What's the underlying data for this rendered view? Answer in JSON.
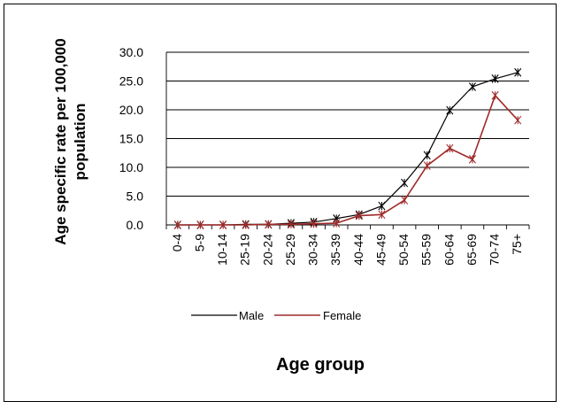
{
  "chart_data": {
    "type": "line",
    "categories": [
      "0-4",
      "5-9",
      "10-14",
      "25-19",
      "20-24",
      "25-29",
      "30-34",
      "35-39",
      "40-44",
      "45-49",
      "50-54",
      "55-59",
      "60-64",
      "65-69",
      "70-74",
      "75+"
    ],
    "series": [
      {
        "name": "Male",
        "color": "#000000",
        "values": [
          0.0,
          0.0,
          0.0,
          0.1,
          0.1,
          0.3,
          0.5,
          1.1,
          1.8,
          3.3,
          7.3,
          12.1,
          19.9,
          24.0,
          25.4,
          26.5
        ]
      },
      {
        "name": "Female",
        "color": "#a02a2a",
        "values": [
          0.0,
          0.0,
          0.0,
          0.0,
          0.1,
          0.1,
          0.2,
          0.3,
          1.6,
          1.8,
          4.3,
          10.3,
          13.3,
          11.4,
          22.5,
          18.2
        ]
      }
    ],
    "yticks": [
      "30.0",
      "25.0",
      "20.0",
      "15.0",
      "10.0",
      "5.0",
      "0.0"
    ],
    "ylim": [
      0,
      30
    ],
    "xlabel": "Age group",
    "ylabel": "Age specific rate per 100,000 population",
    "ylabel_lines": [
      "Age specific rate per 100,000",
      "population"
    ],
    "legend": [
      "Male",
      "Female"
    ],
    "legend_position": "bottom",
    "grid": true
  }
}
